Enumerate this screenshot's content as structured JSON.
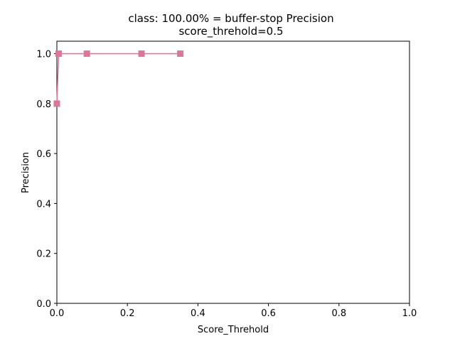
{
  "chart_data": {
    "type": "line",
    "title": "class: 100.00% = buffer-stop Precision",
    "subtitle": "score_threhold=0.5",
    "xlabel": "Score_Threhold",
    "ylabel": "Precision",
    "xlim": [
      0.0,
      1.0
    ],
    "ylim": [
      0.0,
      1.05
    ],
    "xticks": [
      "0.0",
      "0.2",
      "0.4",
      "0.6",
      "0.8",
      "1.0"
    ],
    "yticks": [
      "0.0",
      "0.2",
      "0.4",
      "0.6",
      "0.8",
      "1.0"
    ],
    "grid": false,
    "series": [
      {
        "color": "#dd7799",
        "marker": "square",
        "x": [
          0.0,
          0.005,
          0.085,
          0.24,
          0.35
        ],
        "y": [
          0.8,
          1.0,
          1.0,
          1.0,
          1.0
        ]
      }
    ]
  }
}
